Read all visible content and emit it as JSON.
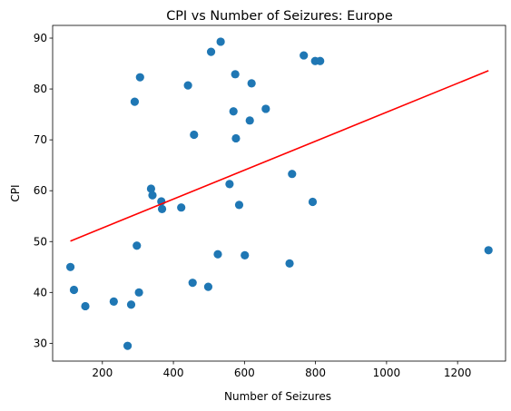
{
  "chart_data": {
    "type": "scatter",
    "title": "CPI vs Number of Seizures: Europe",
    "xlabel": "Number of Seizures",
    "ylabel": "CPI",
    "xlim": [
      60,
      1335
    ],
    "ylim": [
      26.5,
      92.5
    ],
    "xticks": [
      200,
      400,
      600,
      800,
      1000,
      1200
    ],
    "yticks": [
      30,
      40,
      50,
      60,
      70,
      80,
      90
    ],
    "grid": false,
    "point_color": "#1f77b4",
    "trend_color": "#ff0000",
    "points": [
      {
        "x": 110,
        "y": 45.0
      },
      {
        "x": 120,
        "y": 40.5
      },
      {
        "x": 152,
        "y": 37.3
      },
      {
        "x": 232,
        "y": 38.2
      },
      {
        "x": 271,
        "y": 29.5
      },
      {
        "x": 281,
        "y": 37.6
      },
      {
        "x": 291,
        "y": 77.5
      },
      {
        "x": 297,
        "y": 49.2
      },
      {
        "x": 303,
        "y": 40.0
      },
      {
        "x": 306,
        "y": 82.3
      },
      {
        "x": 337,
        "y": 60.4
      },
      {
        "x": 341,
        "y": 59.1
      },
      {
        "x": 366,
        "y": 57.9
      },
      {
        "x": 368,
        "y": 56.4
      },
      {
        "x": 422,
        "y": 56.7
      },
      {
        "x": 441,
        "y": 80.7
      },
      {
        "x": 454,
        "y": 41.9
      },
      {
        "x": 458,
        "y": 71.0
      },
      {
        "x": 498,
        "y": 41.1
      },
      {
        "x": 506,
        "y": 87.3
      },
      {
        "x": 525,
        "y": 47.5
      },
      {
        "x": 533,
        "y": 89.3
      },
      {
        "x": 558,
        "y": 61.3
      },
      {
        "x": 569,
        "y": 75.6
      },
      {
        "x": 574,
        "y": 82.9
      },
      {
        "x": 576,
        "y": 70.3
      },
      {
        "x": 585,
        "y": 57.2
      },
      {
        "x": 601,
        "y": 47.3
      },
      {
        "x": 615,
        "y": 73.8
      },
      {
        "x": 620,
        "y": 81.1
      },
      {
        "x": 660,
        "y": 76.1
      },
      {
        "x": 727,
        "y": 45.7
      },
      {
        "x": 734,
        "y": 63.3
      },
      {
        "x": 767,
        "y": 86.6
      },
      {
        "x": 792,
        "y": 57.8
      },
      {
        "x": 799,
        "y": 85.5
      },
      {
        "x": 813,
        "y": 85.5
      },
      {
        "x": 1287,
        "y": 48.3
      }
    ],
    "trendline": {
      "x": [
        110,
        1287
      ],
      "y": [
        50.1,
        83.6
      ]
    }
  }
}
